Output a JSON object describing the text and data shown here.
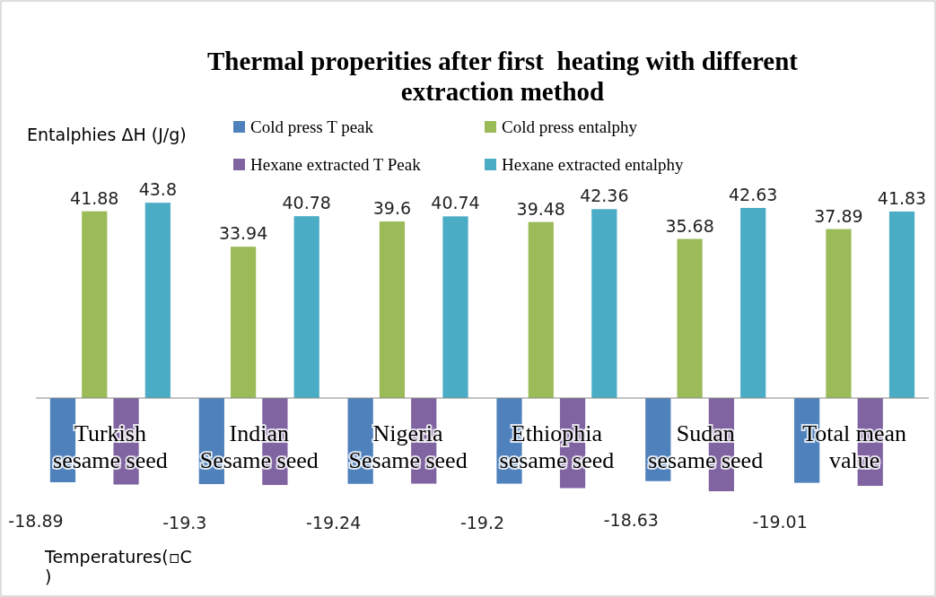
{
  "chart_data": {
    "type": "bar",
    "title": "Thermal properities after first  heating with different extraction method",
    "ylabel": "Entalphies ΔH (J/g)",
    "annotations": [
      "Temperatures(▫C )"
    ],
    "categories": [
      "Turkish sesame seed",
      "Indian Sesame seed",
      "Nigeria Sesame seed",
      "Ethiophia sesame seed",
      "Sudan sesame seed",
      "Total mean value"
    ],
    "series": [
      {
        "name": "Cold press T peak",
        "color": "#4f81bd",
        "values": [
          -18.89,
          -19.3,
          -19.24,
          -19.2,
          -18.63,
          -19.01
        ],
        "value_labels": [
          "-18.89",
          "-19.3",
          "-19.24",
          "-19.2",
          "-18.63",
          "-19.01"
        ]
      },
      {
        "name": "Cold press entalphy",
        "color": "#9bbb59",
        "values": [
          41.88,
          33.94,
          39.6,
          39.48,
          35.68,
          37.89
        ],
        "value_labels": [
          "41.88",
          "33.94",
          "39.6",
          "39.48",
          "35.68",
          "37.89"
        ]
      },
      {
        "name": "Hexane extracted T Peak",
        "color": "#8064a2",
        "values": [
          -19.4,
          -19.5,
          -19.2,
          -20.2,
          -20.9,
          -19.7
        ]
      },
      {
        "name": "Hexane extracted entalphy",
        "color": "#4bacc6",
        "values": [
          43.8,
          40.78,
          40.74,
          42.36,
          42.63,
          41.83
        ],
        "value_labels": [
          "43.8",
          "40.78",
          "40.74",
          "42.36",
          "42.63",
          "41.83"
        ]
      }
    ],
    "legend": "top",
    "grid": false
  }
}
